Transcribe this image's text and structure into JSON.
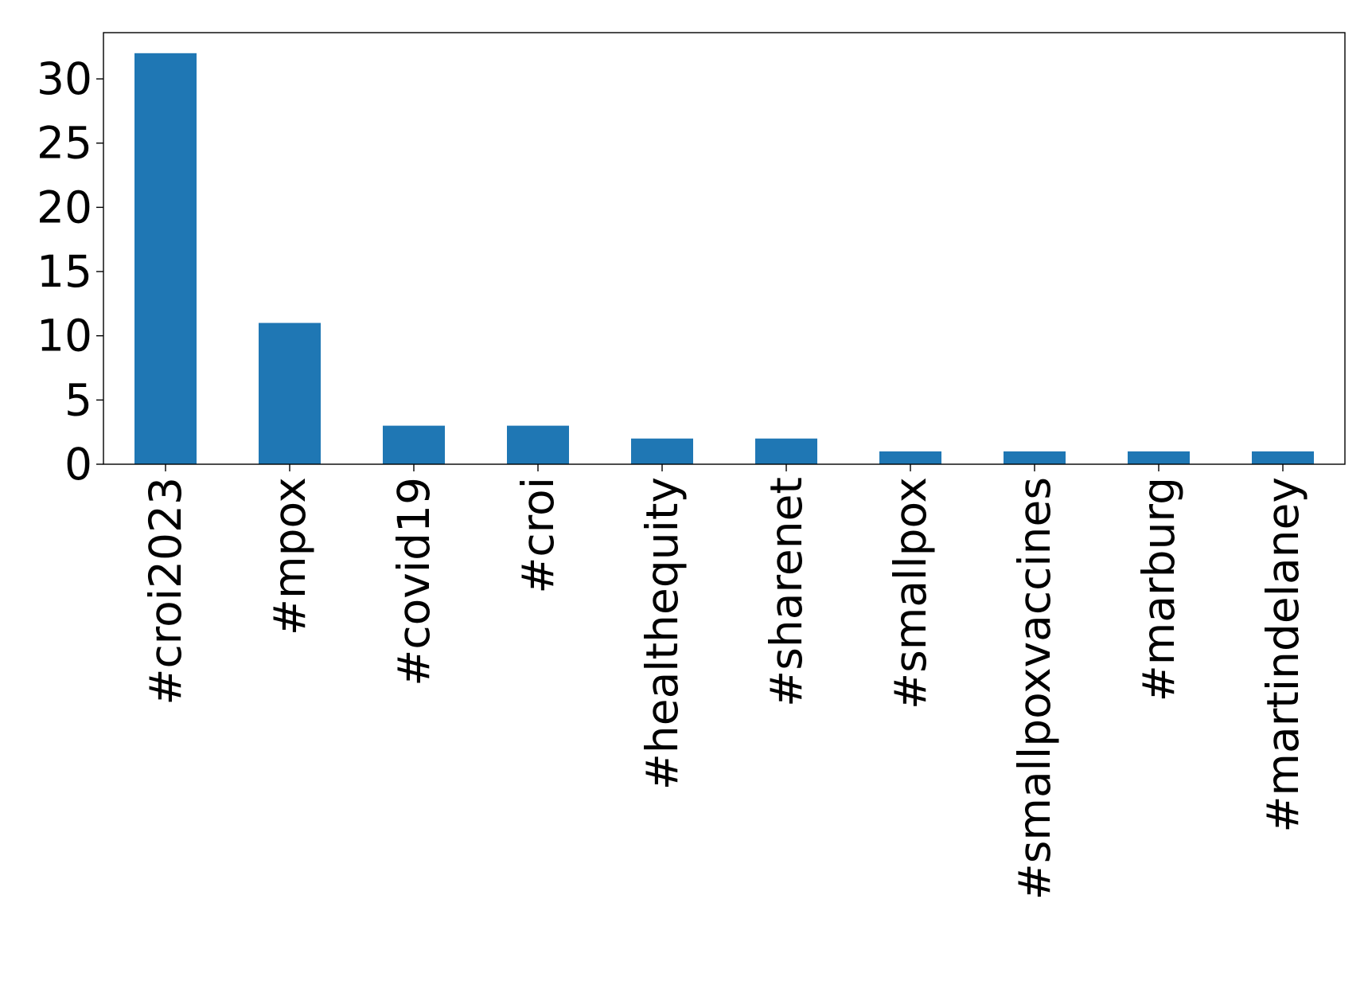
{
  "chart_data": {
    "type": "bar",
    "categories": [
      "#croi2023",
      "#mpox",
      "#covid19",
      "#croi",
      "#healthequity",
      "#sharenet",
      "#smallpox",
      "#smallpoxvaccines",
      "#marburg",
      "#martindelaney"
    ],
    "values": [
      32,
      11,
      3,
      3,
      2,
      2,
      1,
      1,
      1,
      1
    ],
    "title": "",
    "xlabel": "",
    "ylabel": "",
    "ylim": [
      0,
      33.6
    ],
    "yticks": [
      0,
      5,
      10,
      15,
      20,
      25,
      30
    ],
    "bar_color": "#1f77b4",
    "grid": false,
    "legend": "none",
    "x_tick_rotation": "vertical"
  }
}
